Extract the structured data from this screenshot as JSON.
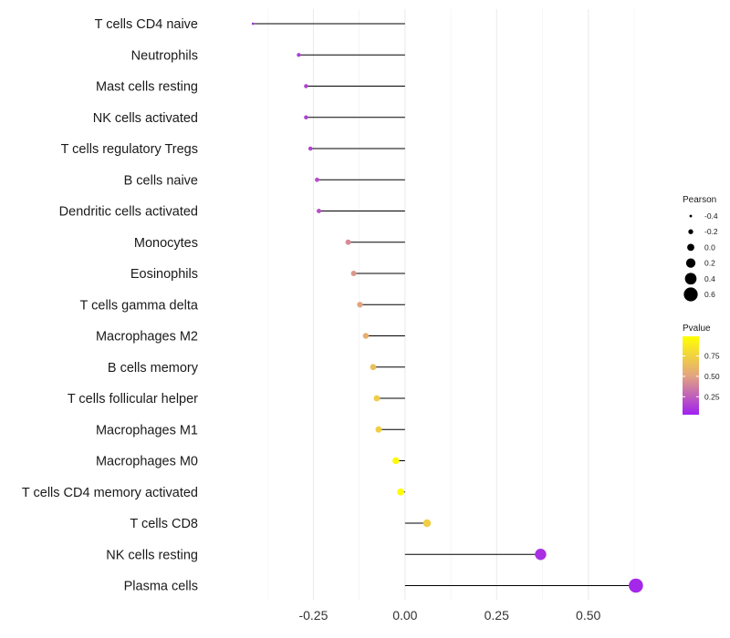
{
  "chart_data": {
    "type": "lollipop",
    "categories": [
      "T cells CD4 naive",
      "Neutrophils",
      "Mast cells resting",
      "NK cells activated",
      "T cells regulatory  Tregs ",
      "B cells naive",
      "Dendritic cells activated",
      "Monocytes",
      "Eosinophils",
      "T cells gamma delta",
      "Macrophages M2",
      "B cells memory",
      "T cells follicular helper",
      "Macrophages M1",
      "Macrophages M0",
      "T cells CD4 memory activated",
      "T cells CD8",
      "NK cells resting",
      "Plasma cells"
    ],
    "pearson": [
      -0.415,
      -0.29,
      -0.27,
      -0.27,
      -0.258,
      -0.24,
      -0.235,
      -0.155,
      -0.14,
      -0.123,
      -0.107,
      -0.087,
      -0.077,
      -0.072,
      -0.025,
      -0.012,
      0.06,
      0.37,
      0.63
    ],
    "pvalue": [
      0.07,
      0.1,
      0.12,
      0.12,
      0.14,
      0.17,
      0.18,
      0.4,
      0.45,
      0.5,
      0.56,
      0.65,
      0.72,
      0.74,
      0.97,
      0.99,
      0.73,
      0.06,
      0.03
    ],
    "xlim": [
      -0.52,
      0.7
    ],
    "xticks": [
      -0.25,
      0,
      0.25,
      0.5
    ],
    "xtick_labels": [
      "-0.25",
      "0.00",
      "0.25",
      "0.50"
    ],
    "xlabel": "",
    "ylabel": "",
    "grid": true,
    "legend_size": {
      "title": "Pearson",
      "values": [
        -0.4,
        -0.2,
        0.0,
        0.2,
        0.4,
        0.6
      ],
      "labels": [
        "-0.4",
        "-0.2",
        "0.0",
        "0.2",
        "0.4",
        "0.6"
      ]
    },
    "legend_color": {
      "title": "Pvalue",
      "ticks": [
        0.75,
        0.5,
        0.25
      ],
      "tick_labels": [
        "0.75",
        "0.50",
        "0.25"
      ],
      "low_color": "#a020f0",
      "mid_color": "#e3a57f",
      "high_color": "#ffff00"
    },
    "legend_position": "right"
  }
}
